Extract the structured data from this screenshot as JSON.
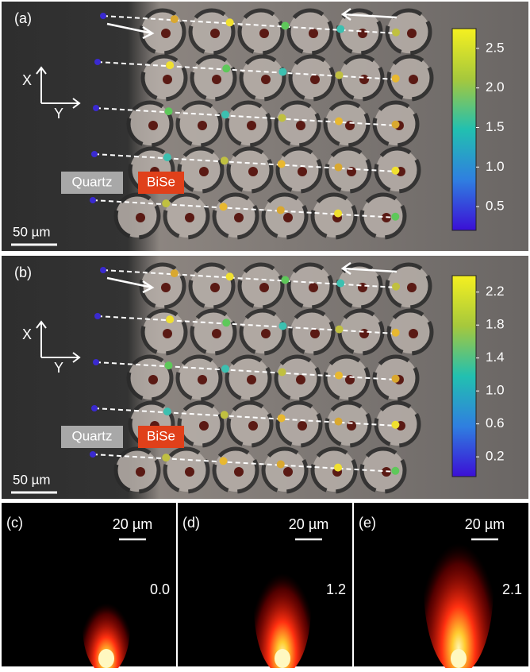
{
  "panels": [
    {
      "label": "(a)",
      "axes": {
        "x": "X",
        "y": "Y"
      },
      "materials": [
        "Quartz",
        "BiSe"
      ],
      "scale_bar": "50 µm",
      "colorbar_ticks": [
        "2.5",
        "2.0",
        "1.5",
        "1.0",
        "0.5"
      ]
    },
    {
      "label": "(b)",
      "axes": {
        "x": "X",
        "y": "Y"
      },
      "materials": [
        "Quartz",
        "BiSe"
      ],
      "scale_bar": "50 µm",
      "colorbar_ticks": [
        "2.2",
        "1.8",
        "1.4",
        "1.0",
        "0.6",
        "0.2"
      ]
    }
  ],
  "flame_panels": [
    {
      "label": "(c)",
      "scale_bar": "20 µm",
      "value": "0.0"
    },
    {
      "label": "(d)",
      "scale_bar": "20 µm",
      "value": "1.2"
    },
    {
      "label": "(e)",
      "scale_bar": "20 µm",
      "value": "2.1"
    }
  ]
}
